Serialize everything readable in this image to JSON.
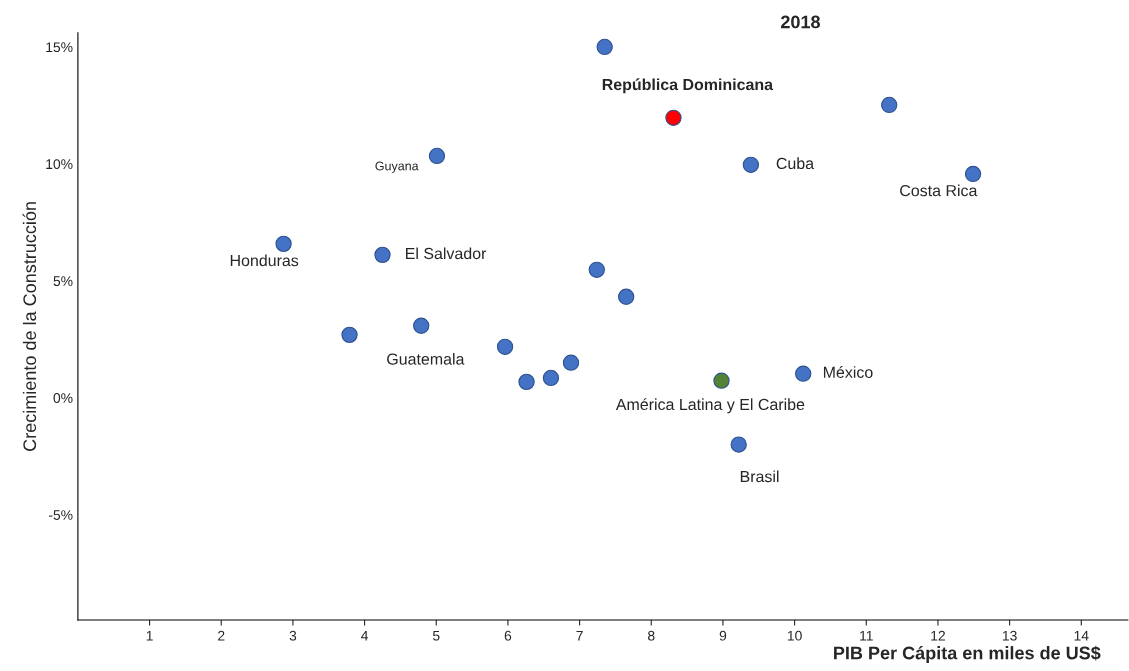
{
  "chart_data": {
    "type": "scatter",
    "title": "2018",
    "xlabel": "PIB Per Cápita en miles de US$",
    "ylabel": "Crecimiento de la Construcción",
    "x": [
      7.35,
      8.31,
      11.32,
      12.49,
      9.39,
      5.01,
      2.87,
      4.25,
      7.24,
      7.65,
      3.79,
      4.79,
      5.96,
      6.26,
      6.6,
      6.88,
      8.98,
      10.12,
      9.22
    ],
    "values": [
      15.0,
      11.97,
      12.52,
      9.57,
      9.96,
      10.34,
      6.58,
      6.11,
      5.47,
      4.32,
      2.69,
      3.08,
      2.18,
      0.68,
      0.85,
      1.5,
      0.73,
      1.03,
      -2.0
    ],
    "colors": [
      "#4472c4",
      "#ff0000",
      "#4472c4",
      "#4472c4",
      "#4472c4",
      "#4472c4",
      "#4472c4",
      "#4472c4",
      "#4472c4",
      "#4472c4",
      "#4472c4",
      "#4472c4",
      "#4472c4",
      "#4472c4",
      "#4472c4",
      "#4472c4",
      "#548235",
      "#4472c4",
      "#4472c4"
    ],
    "marker": "circle",
    "grid": false,
    "legend": false,
    "xlim": [
      0,
      14.65
    ],
    "ylim": [
      -9.5,
      15.6
    ],
    "xticks": [
      1,
      2,
      3,
      4,
      5,
      6,
      7,
      8,
      9,
      10,
      11,
      12,
      13,
      14
    ],
    "yticks": [
      {
        "value": -5,
        "label": "-5%"
      },
      {
        "value": 0,
        "label": "0%"
      },
      {
        "value": 5,
        "label": "5%"
      },
      {
        "value": 10,
        "label": "10%"
      },
      {
        "value": 15,
        "label": "15%"
      }
    ],
    "annotations": [
      {
        "text": "República Dominicana",
        "x": 8.31,
        "y": 11.97
      },
      {
        "text": "Cuba",
        "x": 9.39,
        "y": 9.96
      },
      {
        "text": "Costa Rica",
        "x": 12.49,
        "y": 9.57
      },
      {
        "text": "Guyana",
        "x": 5.01,
        "y": 10.34
      },
      {
        "text": "Honduras",
        "x": 2.87,
        "y": 6.58
      },
      {
        "text": "El Salvador",
        "x": 4.25,
        "y": 6.11
      },
      {
        "text": "Guatemala",
        "x": 4.79,
        "y": 3.08
      },
      {
        "text": "América Latina y El Caribe",
        "x": 8.98,
        "y": 0.73
      },
      {
        "text": "México",
        "x": 10.12,
        "y": 1.03
      },
      {
        "text": "Brasil",
        "x": 9.22,
        "y": -2.0
      }
    ]
  }
}
